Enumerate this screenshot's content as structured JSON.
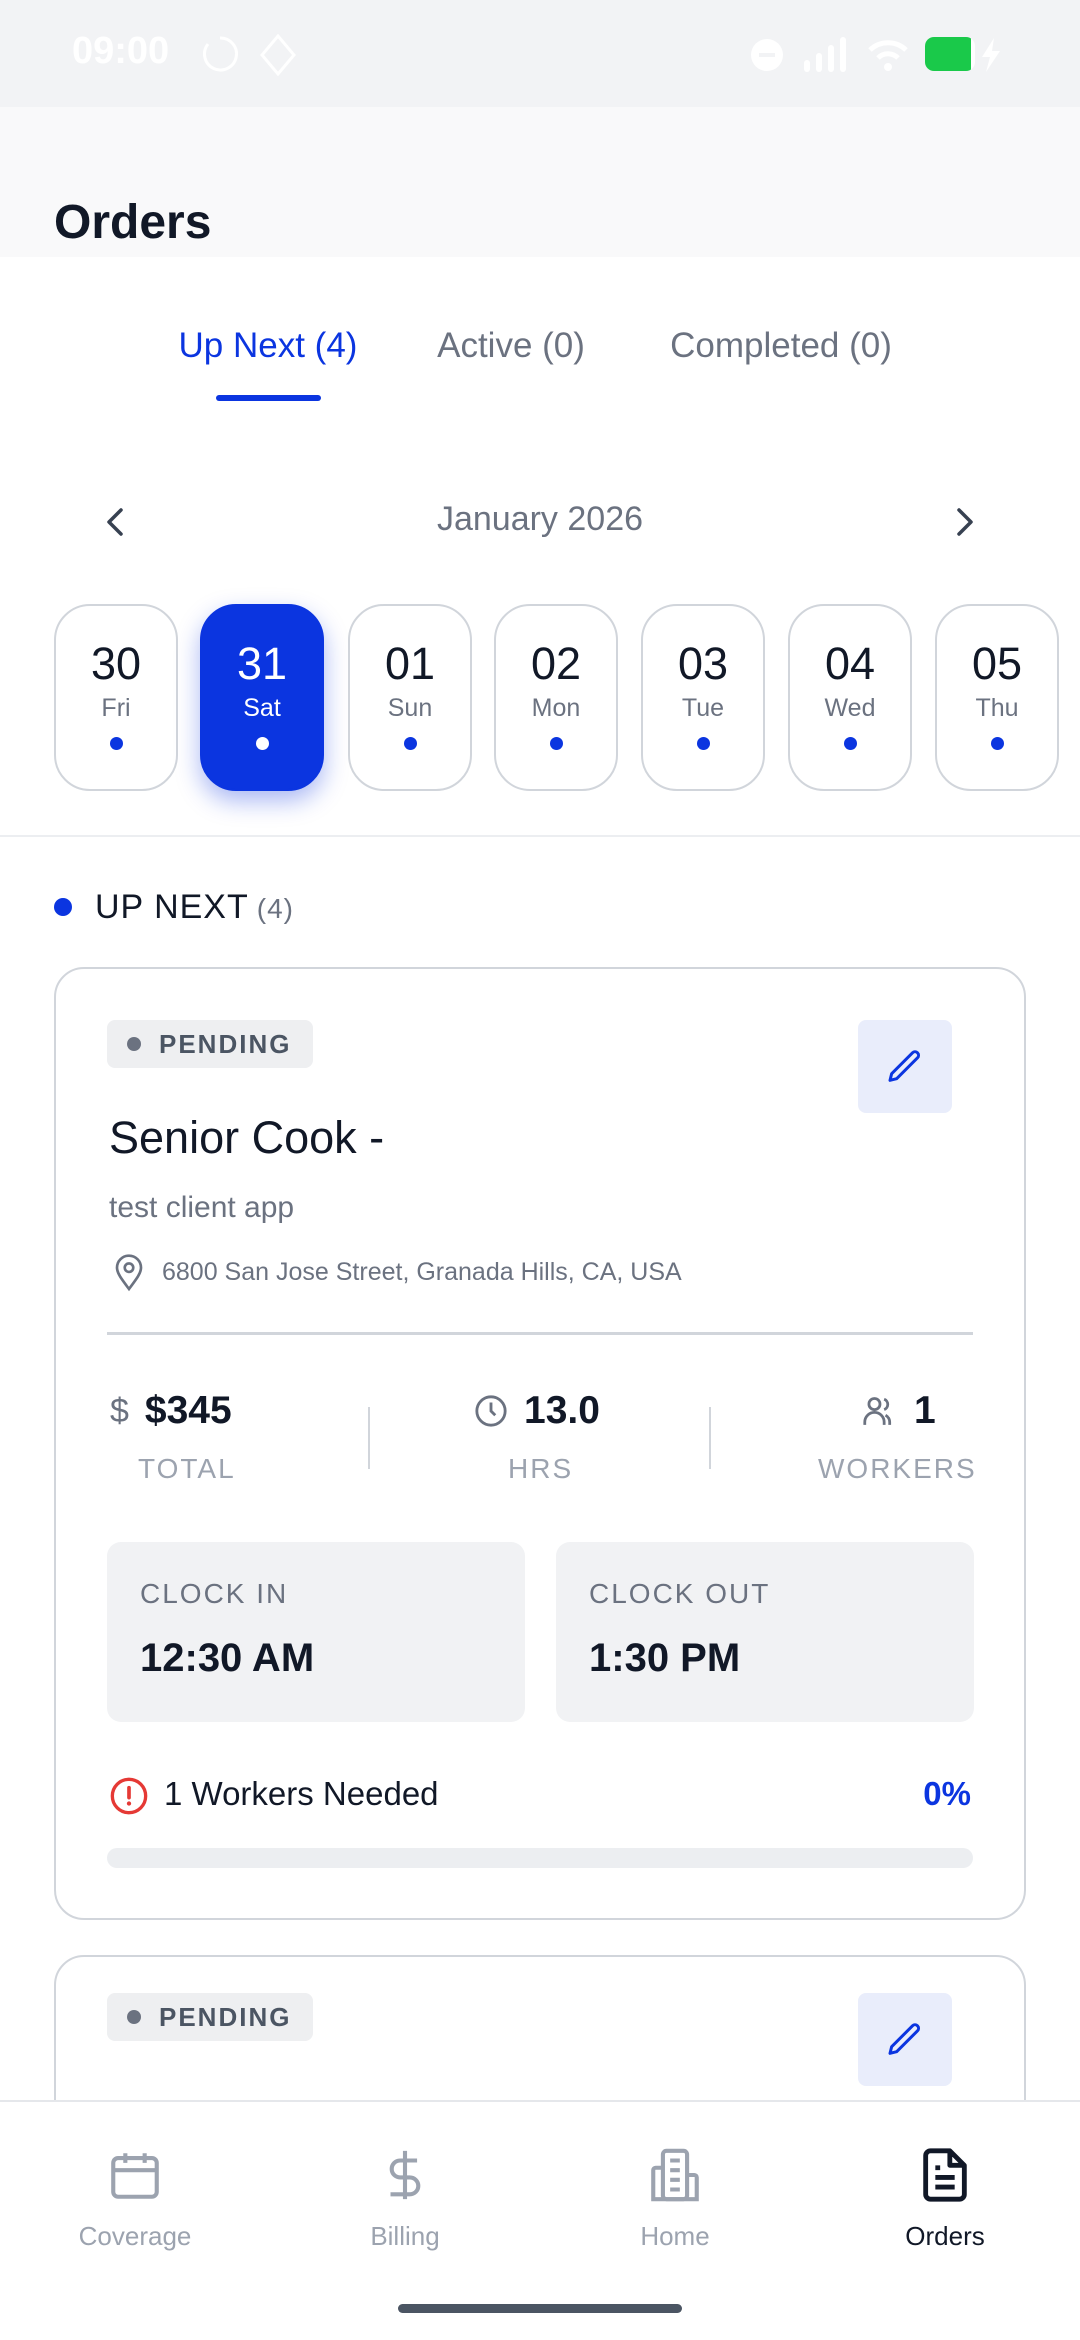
{
  "status_bar": {
    "time": "09:00",
    "battery_color": "#1ac94a"
  },
  "header": {
    "title": "Orders"
  },
  "tabs": [
    {
      "label": "Up Next (4)",
      "active": true
    },
    {
      "label": "Active (0)",
      "active": false
    },
    {
      "label": "Completed (0)",
      "active": false
    }
  ],
  "calendar": {
    "month": "January 2026",
    "days": [
      {
        "num": "30",
        "day": "Fri",
        "selected": false
      },
      {
        "num": "31",
        "day": "Sat",
        "selected": true
      },
      {
        "num": "01",
        "day": "Sun",
        "selected": false
      },
      {
        "num": "02",
        "day": "Mon",
        "selected": false
      },
      {
        "num": "03",
        "day": "Tue",
        "selected": false
      },
      {
        "num": "04",
        "day": "Wed",
        "selected": false
      },
      {
        "num": "05",
        "day": "Thu",
        "selected": false
      }
    ]
  },
  "section": {
    "label": "UP NEXT",
    "count": "(4)"
  },
  "orders": [
    {
      "status": "PENDING",
      "title": "Senior Cook -",
      "client": "test client app",
      "address": "6800 San Jose Street, Granada Hills, CA, USA",
      "total": "$345",
      "total_label": "TOTAL",
      "hours": "13.0",
      "hours_label": "HRS",
      "workers": "1",
      "workers_label": "WORKERS",
      "clock_in_label": "CLOCK IN",
      "clock_in": "12:30 AM",
      "clock_out_label": "CLOCK OUT",
      "clock_out": "1:30 PM",
      "needed": "1 Workers Needed",
      "fill_percent_label": "0%",
      "fill_percent": 0
    },
    {
      "status": "PENDING"
    }
  ],
  "bottom_nav": [
    {
      "label": "Coverage",
      "icon": "calendar-icon",
      "active": false
    },
    {
      "label": "Billing",
      "icon": "dollar-icon",
      "active": false
    },
    {
      "label": "Home",
      "icon": "building-icon",
      "active": false
    },
    {
      "label": "Orders",
      "icon": "document-icon",
      "active": true
    }
  ],
  "colors": {
    "accent": "#0b35e0",
    "error": "#e53935"
  }
}
